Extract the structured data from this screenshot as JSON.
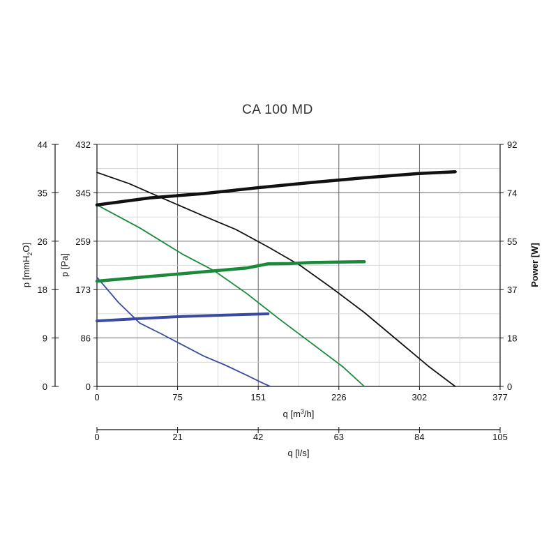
{
  "chart_data": {
    "type": "line",
    "title": "CA 100 MD",
    "x_axis_primary": {
      "label": "q [m³/h]",
      "label_main": "q [m",
      "label_sup": "3",
      "label_end": "/h]",
      "ticks": [
        0,
        75,
        151,
        226,
        302,
        377
      ],
      "range": [
        0,
        377
      ]
    },
    "x_axis_secondary": {
      "label": "q [l/s]",
      "ticks": [
        0,
        21,
        42,
        63,
        84,
        105
      ],
      "range": [
        0,
        105
      ]
    },
    "y_axis_pa": {
      "label": "p [Pa]",
      "ticks": [
        0,
        86,
        173,
        259,
        345,
        432
      ],
      "range": [
        0,
        432
      ]
    },
    "y_axis_mmh2o": {
      "label": "p [mmH₂O]",
      "label_main": "p [mmH",
      "label_sub": "2",
      "label_end": "O]",
      "ticks": [
        0,
        9,
        18,
        26,
        35,
        44
      ],
      "range": [
        0,
        44
      ]
    },
    "y_axis_power": {
      "label": "Power [W]",
      "ticks": [
        0,
        18,
        37,
        55,
        74,
        92
      ],
      "range": [
        0,
        92
      ]
    },
    "grid": true,
    "pressure_series": [
      {
        "color": "#111111",
        "width": 1.8,
        "points": [
          [
            0,
            382
          ],
          [
            30,
            362
          ],
          [
            60,
            337
          ],
          [
            100,
            304
          ],
          [
            130,
            280
          ],
          [
            160,
            249
          ],
          [
            190,
            216
          ],
          [
            220,
            175
          ],
          [
            250,
            132
          ],
          [
            280,
            84
          ],
          [
            310,
            36
          ],
          [
            335,
            0
          ]
        ]
      },
      {
        "color": "#1a8a3a",
        "width": 1.8,
        "points": [
          [
            0,
            324
          ],
          [
            40,
            283
          ],
          [
            80,
            236
          ],
          [
            110,
            206
          ],
          [
            140,
            166
          ],
          [
            170,
            121
          ],
          [
            200,
            78
          ],
          [
            230,
            35
          ],
          [
            250,
            0
          ]
        ]
      },
      {
        "color": "#3a4aa0",
        "width": 1.8,
        "points": [
          [
            0,
            195
          ],
          [
            20,
            150
          ],
          [
            40,
            113
          ],
          [
            60,
            94
          ],
          [
            80,
            74
          ],
          [
            100,
            54
          ],
          [
            120,
            38
          ],
          [
            140,
            20
          ],
          [
            155,
            6
          ],
          [
            162,
            0
          ]
        ]
      }
    ],
    "power_series": [
      {
        "color": "#111111",
        "width": 4.5,
        "points": [
          [
            0,
            69
          ],
          [
            50,
            71.7
          ],
          [
            100,
            73.3
          ],
          [
            150,
            75.5
          ],
          [
            200,
            77.5
          ],
          [
            250,
            79.3
          ],
          [
            300,
            80.9
          ],
          [
            335,
            81.6
          ]
        ]
      },
      {
        "color": "#1a8a3a",
        "width": 4.5,
        "points": [
          [
            0,
            40
          ],
          [
            50,
            41.8
          ],
          [
            100,
            43.6
          ],
          [
            140,
            45
          ],
          [
            160,
            46.6
          ],
          [
            180,
            46.7
          ],
          [
            200,
            47.1
          ],
          [
            250,
            47.4
          ]
        ]
      },
      {
        "color": "#3a4aa0",
        "width": 4.0,
        "points": [
          [
            0,
            24.9
          ],
          [
            40,
            25.8
          ],
          [
            80,
            26.6
          ],
          [
            120,
            27.1
          ],
          [
            160,
            27.6
          ]
        ]
      }
    ]
  }
}
